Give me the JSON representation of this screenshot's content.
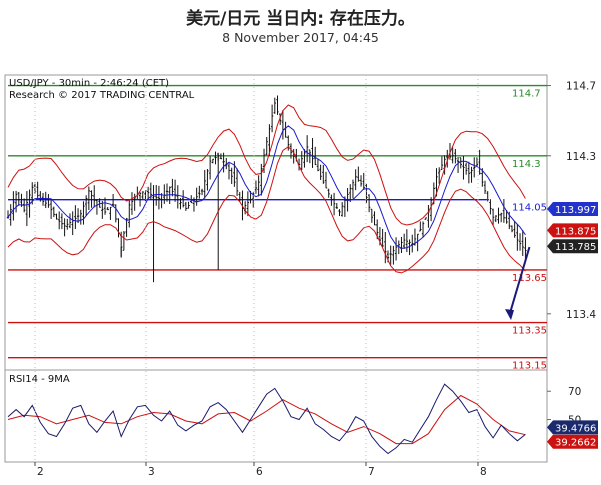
{
  "header": {
    "title": "美元/日元 当日内: 存在压力。",
    "subtitle": "8 November 2017, 04:45"
  },
  "main_chart": {
    "instrument": "USD/JPY - 30min - 2:46:24 (CET)",
    "research": "Research © 2017 TRADING CENTRAL"
  },
  "rsi_panel": {
    "title": "RSI14 - 9MA"
  },
  "chart_data": [
    {
      "type": "candlestick",
      "ylim": [
        113.08,
        114.76
      ],
      "y_ticks": [
        114.7,
        114.3,
        113.4
      ],
      "x_ticks": [
        "2",
        "3",
        "6",
        "7",
        "8"
      ],
      "resistance_lines": [
        {
          "value": 114.7,
          "label": "114.7",
          "color": "#2a8a2a"
        },
        {
          "value": 114.3,
          "label": "114.3",
          "color": "#2a8a2a"
        }
      ],
      "pivot_line": {
        "value": 114.05,
        "label": "114.05",
        "color": "#1a1acc"
      },
      "support_lines": [
        {
          "value": 113.65,
          "label": "113.65",
          "color": "#cc1111"
        },
        {
          "value": 113.35,
          "label": "113.35",
          "color": "#cc1111"
        },
        {
          "value": 113.15,
          "label": "113.15",
          "color": "#cc1111"
        }
      ],
      "price_tags": [
        {
          "value": 113.997,
          "label": "113.997",
          "color": "#2233cc"
        },
        {
          "value": 113.875,
          "label": "113.875",
          "color": "#cc1111"
        },
        {
          "value": 113.785,
          "label": "113.785",
          "color": "#222222"
        }
      ],
      "close_path": [
        [
          0,
          113.95
        ],
        [
          3,
          114.08
        ],
        [
          6,
          113.99
        ],
        [
          9,
          114.12
        ],
        [
          12,
          114.05
        ],
        [
          15,
          114.02
        ],
        [
          18,
          113.94
        ],
        [
          21,
          113.9
        ],
        [
          24,
          113.93
        ],
        [
          27,
          113.97
        ],
        [
          30,
          114.1
        ],
        [
          33,
          114.02
        ],
        [
          36,
          113.98
        ],
        [
          39,
          114.02
        ],
        [
          42,
          113.78
        ],
        [
          45,
          114.02
        ],
        [
          48,
          114.08
        ],
        [
          51,
          114.1
        ],
        [
          54,
          114.07
        ],
        [
          57,
          114.05
        ],
        [
          60,
          114.12
        ],
        [
          63,
          114.05
        ],
        [
          66,
          114.0
        ],
        [
          69,
          114.05
        ],
        [
          72,
          114.1
        ],
        [
          75,
          114.27
        ],
        [
          78,
          114.3
        ],
        [
          81,
          114.25
        ],
        [
          84,
          114.15
        ],
        [
          87,
          114.0
        ],
        [
          90,
          114.05
        ],
        [
          93,
          114.15
        ],
        [
          96,
          114.38
        ],
        [
          99,
          114.6
        ],
        [
          102,
          114.45
        ],
        [
          105,
          114.32
        ],
        [
          108,
          114.25
        ],
        [
          111,
          114.35
        ],
        [
          114,
          114.25
        ],
        [
          117,
          114.15
        ],
        [
          120,
          114.05
        ],
        [
          123,
          113.98
        ],
        [
          126,
          114.08
        ],
        [
          129,
          114.18
        ],
        [
          132,
          114.12
        ],
        [
          135,
          113.95
        ],
        [
          138,
          113.82
        ],
        [
          141,
          113.72
        ],
        [
          144,
          113.78
        ],
        [
          147,
          113.82
        ],
        [
          150,
          113.8
        ],
        [
          153,
          113.88
        ],
        [
          156,
          113.98
        ],
        [
          159,
          114.18
        ],
        [
          162,
          114.28
        ],
        [
          165,
          114.3
        ],
        [
          168,
          114.25
        ],
        [
          171,
          114.2
        ],
        [
          174,
          114.25
        ],
        [
          177,
          114.1
        ],
        [
          180,
          113.95
        ],
        [
          183,
          113.97
        ],
        [
          186,
          113.9
        ],
        [
          189,
          113.82
        ],
        [
          192,
          113.76
        ]
      ],
      "bollinger_band_color": "#cc1111",
      "moving_average_color": "#1a1acc"
    },
    {
      "type": "line",
      "name": "RSI14 - 9MA",
      "ylim": [
        20,
        85
      ],
      "y_ticks": [
        70,
        50
      ],
      "rsi_value": 39.4766,
      "ma_value": 39.2662,
      "tags": [
        {
          "value": 39.4766,
          "label": "39.4766",
          "color": "#1a2a6c"
        },
        {
          "value": 39.2662,
          "label": "39.2662",
          "color": "#cc1111"
        }
      ],
      "rsi_path": [
        [
          0,
          52
        ],
        [
          3,
          57
        ],
        [
          6,
          52
        ],
        [
          9,
          60
        ],
        [
          12,
          48
        ],
        [
          15,
          40
        ],
        [
          18,
          38
        ],
        [
          21,
          47
        ],
        [
          24,
          58
        ],
        [
          27,
          60
        ],
        [
          30,
          47
        ],
        [
          33,
          41
        ],
        [
          36,
          49
        ],
        [
          39,
          56
        ],
        [
          42,
          38
        ],
        [
          45,
          50
        ],
        [
          48,
          59
        ],
        [
          51,
          60
        ],
        [
          54,
          53
        ],
        [
          57,
          49
        ],
        [
          60,
          56
        ],
        [
          63,
          46
        ],
        [
          66,
          42
        ],
        [
          69,
          46
        ],
        [
          72,
          49
        ],
        [
          75,
          59
        ],
        [
          78,
          62
        ],
        [
          81,
          57
        ],
        [
          84,
          49
        ],
        [
          87,
          41
        ],
        [
          90,
          50
        ],
        [
          93,
          59
        ],
        [
          96,
          68
        ],
        [
          99,
          72
        ],
        [
          102,
          63
        ],
        [
          105,
          52
        ],
        [
          108,
          50
        ],
        [
          111,
          58
        ],
        [
          114,
          47
        ],
        [
          117,
          43
        ],
        [
          120,
          38
        ],
        [
          123,
          35
        ],
        [
          126,
          42
        ],
        [
          129,
          52
        ],
        [
          132,
          49
        ],
        [
          135,
          38
        ],
        [
          138,
          31
        ],
        [
          141,
          26
        ],
        [
          144,
          30
        ],
        [
          147,
          36
        ],
        [
          150,
          34
        ],
        [
          153,
          43
        ],
        [
          156,
          52
        ],
        [
          159,
          64
        ],
        [
          162,
          75
        ],
        [
          165,
          70
        ],
        [
          168,
          63
        ],
        [
          171,
          55
        ],
        [
          174,
          57
        ],
        [
          177,
          45
        ],
        [
          180,
          37
        ],
        [
          183,
          46
        ],
        [
          186,
          40
        ],
        [
          189,
          35
        ],
        [
          192,
          39.5
        ]
      ],
      "ma_path": [
        [
          0,
          50
        ],
        [
          6,
          53
        ],
        [
          12,
          52
        ],
        [
          18,
          47
        ],
        [
          24,
          50
        ],
        [
          30,
          53
        ],
        [
          36,
          48
        ],
        [
          42,
          47
        ],
        [
          48,
          52
        ],
        [
          54,
          55
        ],
        [
          60,
          54
        ],
        [
          66,
          49
        ],
        [
          72,
          47
        ],
        [
          78,
          54
        ],
        [
          84,
          55
        ],
        [
          90,
          49
        ],
        [
          96,
          56
        ],
        [
          102,
          64
        ],
        [
          108,
          58
        ],
        [
          114,
          54
        ],
        [
          120,
          47
        ],
        [
          126,
          41
        ],
        [
          132,
          45
        ],
        [
          138,
          40
        ],
        [
          144,
          33
        ],
        [
          150,
          33
        ],
        [
          156,
          40
        ],
        [
          162,
          57
        ],
        [
          168,
          67
        ],
        [
          174,
          61
        ],
        [
          180,
          50
        ],
        [
          186,
          42
        ],
        [
          192,
          39.3
        ]
      ],
      "rsi_color": "#1a1a6c",
      "ma_color": "#cc1111"
    }
  ]
}
